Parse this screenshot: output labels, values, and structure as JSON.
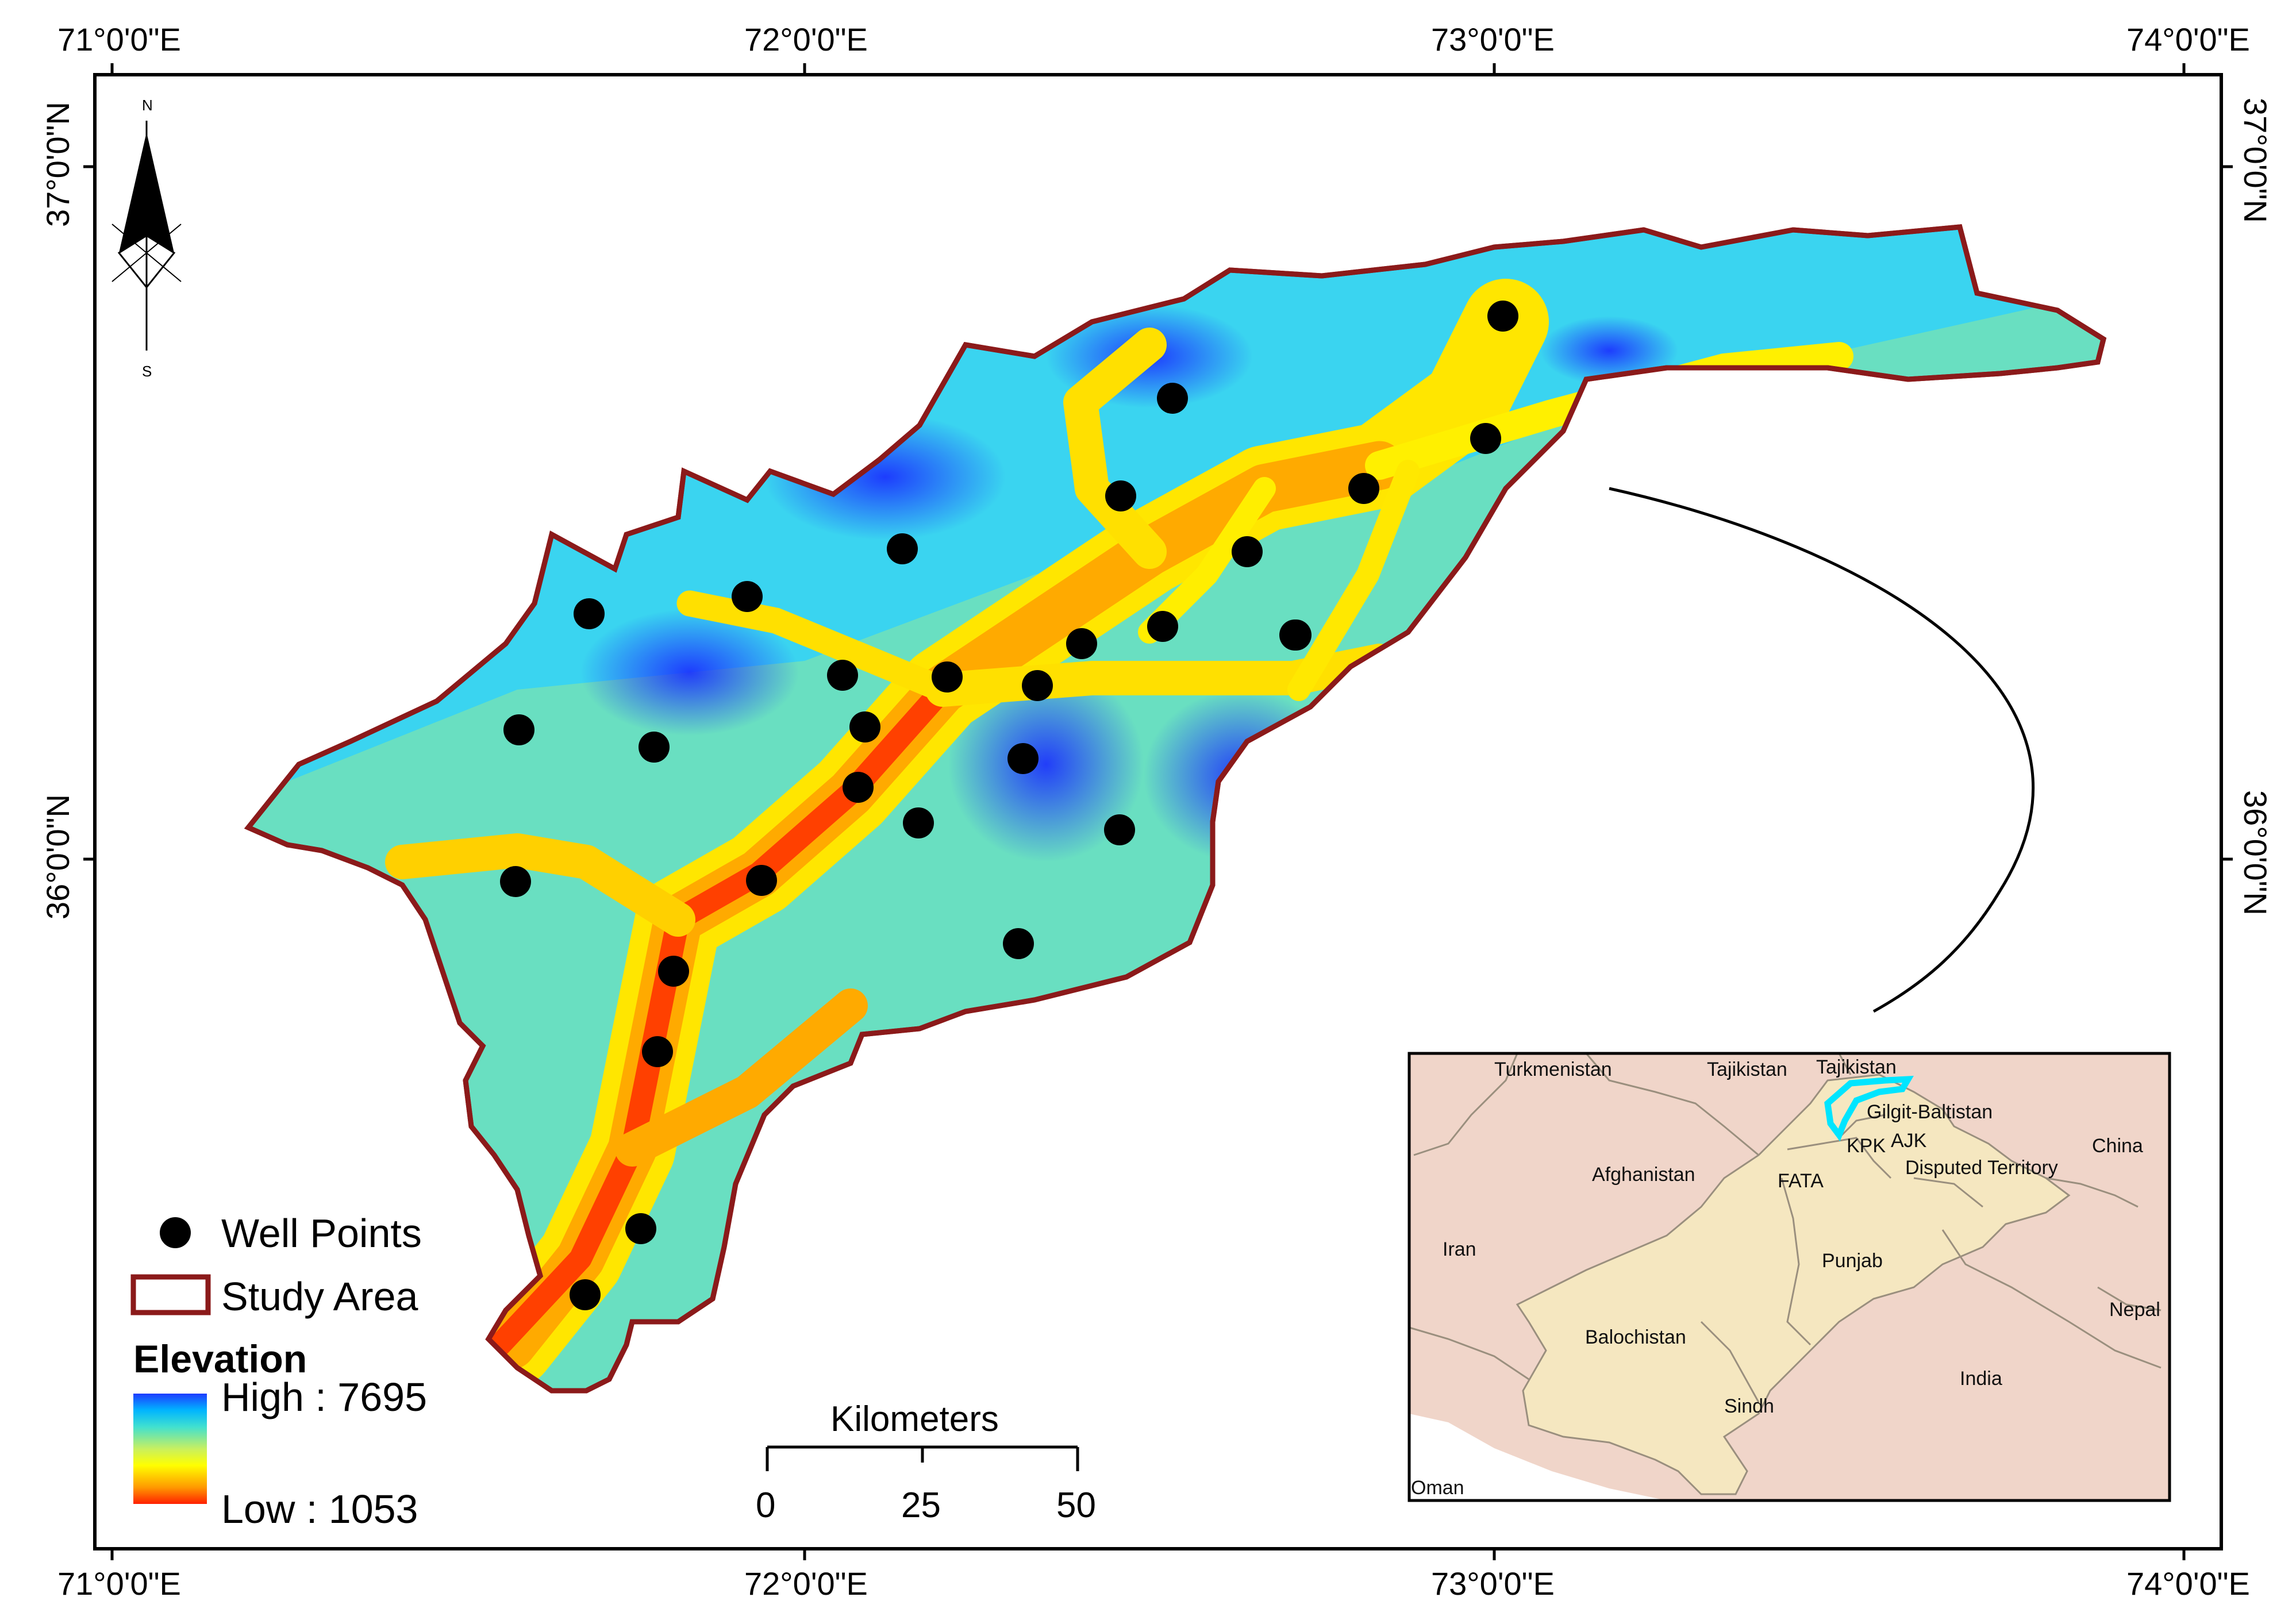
{
  "map": {
    "longitude_labels": [
      "71°0'0\"E",
      "72°0'0\"E",
      "73°0'0\"E",
      "74°0'0\"E"
    ],
    "latitude_labels": [
      "37°0'0\"N",
      "36°0'0\"N"
    ],
    "north_arrow": {
      "north": "N",
      "south": "S",
      "icon": "north-arrow-icon"
    },
    "legend": {
      "well_points": "Well Points",
      "study_area": "Study Area",
      "elevation_title": "Elevation",
      "high": "High : 7695",
      "low": "Low : 1053",
      "study_area_color": "#8b1a1a",
      "ramp_colors": [
        "#1e3cff",
        "#00b4ff",
        "#40e0d0",
        "#c8f060",
        "#ffff00",
        "#ff9900",
        "#ff2000"
      ]
    },
    "scale_bar": {
      "title": "Kilometers",
      "labels": [
        "0",
        "25",
        "50"
      ]
    },
    "inset": {
      "labels": [
        "Turkmenistan",
        "Tajikistan",
        "Tajikistan",
        "Gilgit-Baltistan",
        "China",
        "Afghanistan",
        "KPK",
        "AJK",
        "FATA",
        "Disputed Territory",
        "Iran",
        "Punjab",
        "Nepal",
        "Balochistan",
        "India",
        "Sindh",
        "Oman"
      ],
      "pakistan_color": "#f5e7c0",
      "neighbor_color": "#f0d5c9",
      "study_area_highlight": "#00e5ff"
    }
  }
}
